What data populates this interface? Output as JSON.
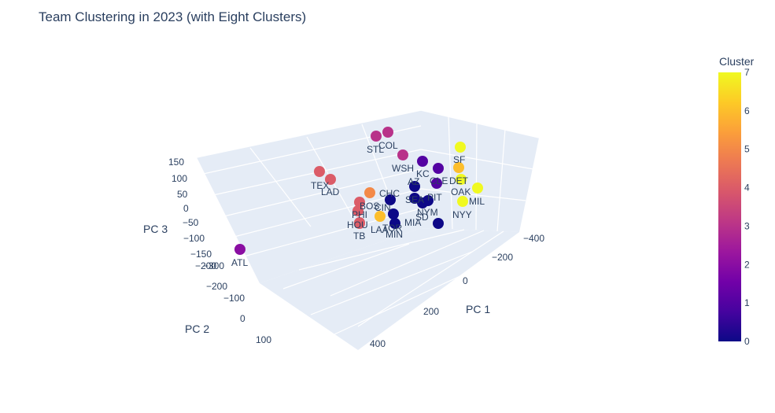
{
  "chart_data": {
    "type": "scatter3d",
    "title": "Team Clustering in 2023 (with Eight Clusters)",
    "axes": {
      "x": {
        "title": "PC 1",
        "ticks": [
          -400,
          -200,
          0,
          200,
          400
        ],
        "tick_labels": [
          "−400",
          "−200",
          "0",
          "200",
          "400"
        ]
      },
      "y": {
        "title": "PC 2",
        "ticks": [
          -300,
          -200,
          -100,
          0,
          100
        ],
        "tick_labels": [
          "−300",
          "−200",
          "−100",
          "0",
          "100"
        ]
      },
      "z": {
        "title": "PC 3",
        "ticks": [
          -200,
          -150,
          -100,
          -50,
          0,
          50,
          100,
          150
        ],
        "tick_labels": [
          "−200",
          "−150",
          "−100",
          "−50",
          "0",
          "50",
          "100",
          "150"
        ]
      }
    },
    "colorbar": {
      "title": "Cluster",
      "range": [
        0,
        7
      ],
      "ticks": [
        "0",
        "1",
        "2",
        "3",
        "4",
        "5",
        "6",
        "7"
      ]
    },
    "points": [
      {
        "team": "ATL",
        "cluster": 2
      },
      {
        "team": "TEX",
        "cluster": 4
      },
      {
        "team": "LAD",
        "cluster": 4
      },
      {
        "team": "STL",
        "cluster": 3
      },
      {
        "team": "COL",
        "cluster": 3
      },
      {
        "team": "WSH",
        "cluster": 3
      },
      {
        "team": "KC",
        "cluster": 1
      },
      {
        "team": "AZ",
        "cluster": 0
      },
      {
        "team": "CLE",
        "cluster": 1
      },
      {
        "team": "DET",
        "cluster": 6
      },
      {
        "team": "SF",
        "cluster": 7
      },
      {
        "team": "OAK",
        "cluster": 7
      },
      {
        "team": "MIL",
        "cluster": 7
      },
      {
        "team": "NYY",
        "cluster": 7
      },
      {
        "team": "PIT",
        "cluster": 1
      },
      {
        "team": "CHC",
        "cluster": 5
      },
      {
        "team": "SEA",
        "cluster": 0
      },
      {
        "team": "NYM",
        "cluster": 0
      },
      {
        "team": "SD",
        "cluster": 0
      },
      {
        "team": "MIA",
        "cluster": 0
      },
      {
        "team": "BOS",
        "cluster": 4
      },
      {
        "team": "CIN",
        "cluster": 0
      },
      {
        "team": "PHI",
        "cluster": 4
      },
      {
        "team": "HOU",
        "cluster": 4
      },
      {
        "team": "TB",
        "cluster": 4
      },
      {
        "team": "LAA",
        "cluster": 6
      },
      {
        "team": "TOR",
        "cluster": 0
      },
      {
        "team": "MIN",
        "cluster": 0
      }
    ]
  }
}
